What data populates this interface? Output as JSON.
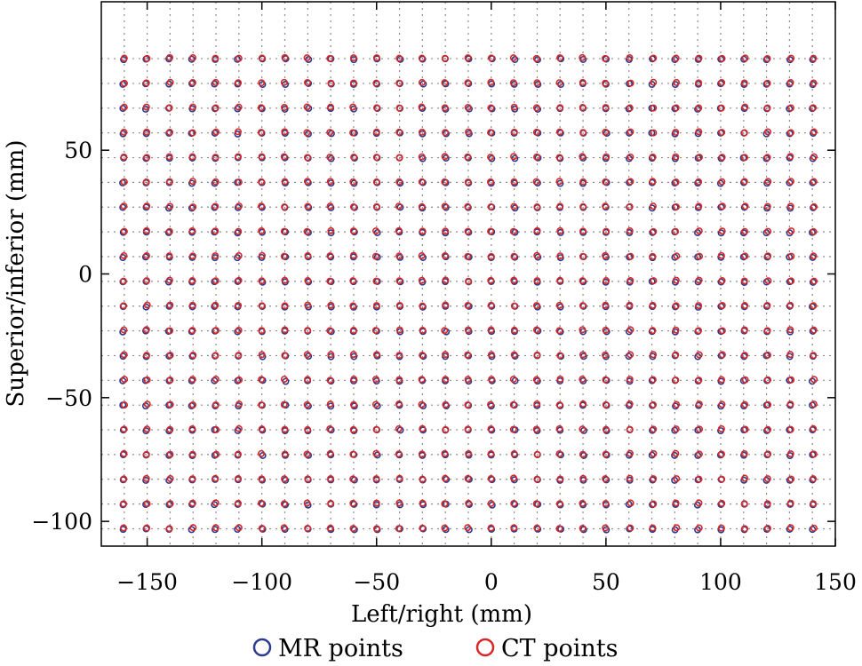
{
  "chart_data": {
    "type": "scatter",
    "xlabel": "Left/right (mm)",
    "ylabel": "Superior/inferior (mm)",
    "xlim": [
      -170,
      150
    ],
    "ylim": [
      -110,
      110
    ],
    "x_ticks": [
      -150,
      -100,
      -50,
      0,
      50,
      100,
      150
    ],
    "x_tick_labels": [
      "−150",
      "−100",
      "−50",
      "0",
      "50",
      "100",
      "150"
    ],
    "y_ticks": [
      -100,
      -50,
      0,
      50
    ],
    "y_tick_labels": [
      "−100",
      "−50",
      "0",
      "50"
    ],
    "grid": true,
    "legend_position": "bottom-center",
    "grid_definition": {
      "x_start": -160,
      "x_step": 10,
      "x_count": 31,
      "y_start": -103,
      "y_step": 10,
      "y_count": 20
    },
    "series": [
      {
        "name": "MR points",
        "color": "#2e3a8c",
        "marker": "circle-open"
      },
      {
        "name": "CT points",
        "color": "#d62828",
        "marker": "circle-open"
      }
    ]
  }
}
